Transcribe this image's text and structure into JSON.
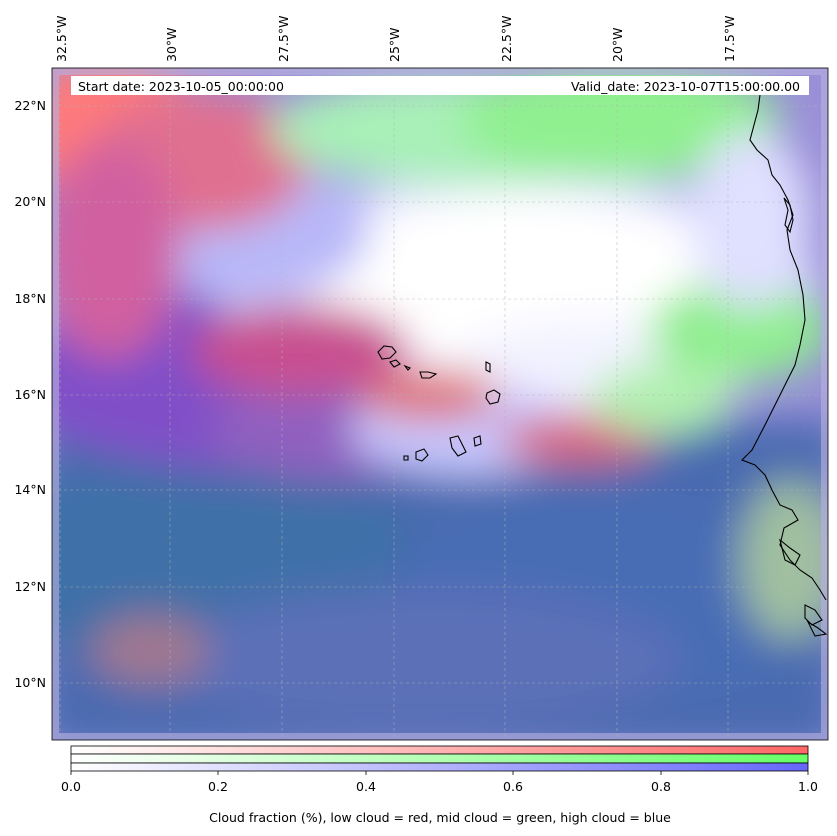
{
  "map": {
    "start_label": "Start date: 2023-10-05_00:00:00",
    "valid_label": "Valid_date: 2023-10-07T15:00:00.00",
    "lon_labels": [
      "32.5°W",
      "30°W",
      "27.5°W",
      "25°W",
      "22.5°W",
      "20°W",
      "17.5°W"
    ],
    "lat_labels": [
      "22°N",
      "20°N",
      "18°N",
      "16°N",
      "14°N",
      "12°N",
      "10°N"
    ],
    "coastline_color": "#000000",
    "gridline_color": "#b4b4b4"
  },
  "colorbar": {
    "ticks": [
      "0.0",
      "0.2",
      "0.4",
      "0.6",
      "0.8",
      "1.0"
    ],
    "title": "Cloud fraction (%), low cloud = red, mid cloud = green, high cloud = blue",
    "colors": {
      "low": "#ff6666",
      "mid": "#66ff66",
      "high": "#6666ff"
    }
  }
}
